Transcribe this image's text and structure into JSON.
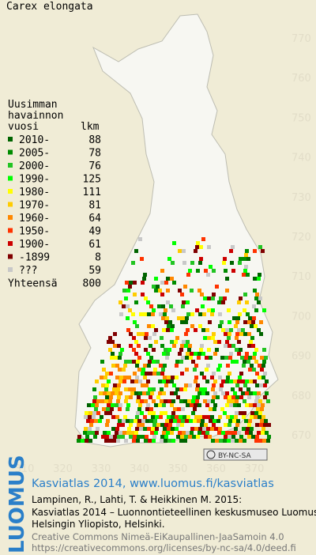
{
  "title": "Carex elongata",
  "legend": {
    "heading": [
      "Uusimman",
      "havainnon",
      "vuosi"
    ],
    "count_heading": "lkm",
    "rows": [
      {
        "label": "2010-",
        "count": 88,
        "color": "#006400"
      },
      {
        "label": "2005-",
        "count": 78,
        "color": "#008c00"
      },
      {
        "label": "2000-",
        "count": 76,
        "color": "#22c422"
      },
      {
        "label": "1990-",
        "count": 125,
        "color": "#00ff00"
      },
      {
        "label": "1980-",
        "count": 111,
        "color": "#ffff00"
      },
      {
        "label": "1970-",
        "count": 81,
        "color": "#ffcc00"
      },
      {
        "label": "1960-",
        "count": 64,
        "color": "#ff8800"
      },
      {
        "label": "1950-",
        "count": 49,
        "color": "#ff3300"
      },
      {
        "label": "1900-",
        "count": 61,
        "color": "#cc0000"
      },
      {
        "label": "-1899",
        "count": 8,
        "color": "#800000"
      },
      {
        "label": "???",
        "count": 59,
        "color": "#c8c8c8"
      }
    ],
    "total": {
      "label": "Yhteensä",
      "count": 800
    }
  },
  "grid": {
    "northing": [
      770,
      760,
      750,
      740,
      730,
      720,
      710,
      700,
      690,
      680,
      670
    ],
    "easting": [
      310,
      320,
      330,
      340,
      350,
      360,
      370
    ]
  },
  "license_badge": "BY-NC-SA",
  "footer": {
    "logo": "LUOMUS",
    "title": "Kasviatlas 2014, www.luomus.fi/kasviatlas",
    "citation": [
      "Lampinen, R., Lahti, T. & Heikkinen M. 2015:",
      "Kasviatlas 2014 – Luonnontieteellinen keskusmuseo Luomus,",
      "Helsingin Yliopisto, Helsinki."
    ],
    "license": [
      "Creative Commons Nimeä-EiKaupallinen-JaaSamoin 4.0",
      "https://creativecommons.org/licenses/by-nc-sa/4.0/deed.fi"
    ]
  }
}
